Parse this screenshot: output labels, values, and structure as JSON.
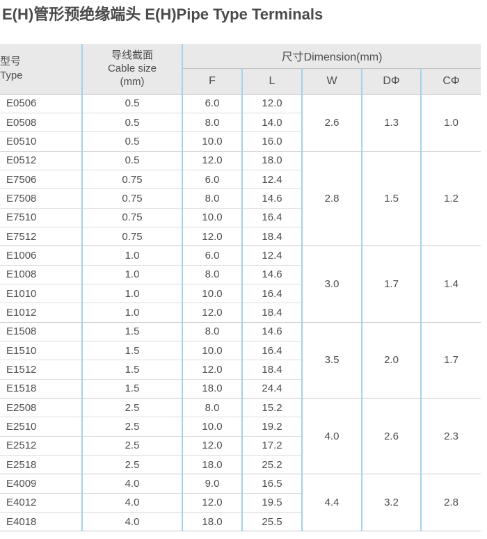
{
  "page": {
    "title": "E(H)管形预绝缘端头 E(H)Pipe Type Terminals"
  },
  "table": {
    "header": {
      "type_cn": "型号",
      "type_en": "Type",
      "cable_line1": "导线截面",
      "cable_line2": "Cable size",
      "cable_line3": "(mm)",
      "dimension": "尺寸Dimension(mm)",
      "col_f": "F",
      "col_l": "L",
      "col_w": "W",
      "col_d": "DΦ",
      "col_c": "CΦ"
    },
    "rows": [
      {
        "type": "E0506",
        "cable": "0.5",
        "f": "6.0",
        "l": "12.0"
      },
      {
        "type": "E0508",
        "cable": "0.5",
        "f": "8.0",
        "l": "14.0"
      },
      {
        "type": "E0510",
        "cable": "0.5",
        "f": "10.0",
        "l": "16.0"
      },
      {
        "type": "E0512",
        "cable": "0.5",
        "f": "12.0",
        "l": "18.0"
      },
      {
        "type": "E7506",
        "cable": "0.75",
        "f": "6.0",
        "l": "12.4"
      },
      {
        "type": "E7508",
        "cable": "0.75",
        "f": "8.0",
        "l": "14.6"
      },
      {
        "type": "E7510",
        "cable": "0.75",
        "f": "10.0",
        "l": "16.4"
      },
      {
        "type": "E7512",
        "cable": "0.75",
        "f": "12.0",
        "l": "18.4"
      },
      {
        "type": "E1006",
        "cable": "1.0",
        "f": "6.0",
        "l": "12.4"
      },
      {
        "type": "E1008",
        "cable": "1.0",
        "f": "8.0",
        "l": "14.6"
      },
      {
        "type": "E1010",
        "cable": "1.0",
        "f": "10.0",
        "l": "16.4"
      },
      {
        "type": "E1012",
        "cable": "1.0",
        "f": "12.0",
        "l": "18.4"
      },
      {
        "type": "E1508",
        "cable": "1.5",
        "f": "8.0",
        "l": "14.6"
      },
      {
        "type": "E1510",
        "cable": "1.5",
        "f": "10.0",
        "l": "16.4"
      },
      {
        "type": "E1512",
        "cable": "1.5",
        "f": "12.0",
        "l": "18.4"
      },
      {
        "type": "E1518",
        "cable": "1.5",
        "f": "18.0",
        "l": "24.4"
      },
      {
        "type": "E2508",
        "cable": "2.5",
        "f": "8.0",
        "l": "15.2"
      },
      {
        "type": "E2510",
        "cable": "2.5",
        "f": "10.0",
        "l": "19.2"
      },
      {
        "type": "E2512",
        "cable": "2.5",
        "f": "12.0",
        "l": "17.2"
      },
      {
        "type": "E2518",
        "cable": "2.5",
        "f": "18.0",
        "l": "25.2"
      },
      {
        "type": "E4009",
        "cable": "4.0",
        "f": "9.0",
        "l": "16.5"
      },
      {
        "type": "E4012",
        "cable": "4.0",
        "f": "12.0",
        "l": "19.5"
      },
      {
        "type": "E4018",
        "cable": "4.0",
        "f": "18.0",
        "l": "25.5"
      }
    ],
    "groups": [
      {
        "row_span": 3,
        "w": "2.6",
        "d": "1.3",
        "c": "1.0"
      },
      {
        "row_span": 5,
        "w": "2.8",
        "d": "1.5",
        "c": "1.2"
      },
      {
        "row_span": 4,
        "w": "3.0",
        "d": "1.7",
        "c": "1.4"
      },
      {
        "row_span": 4,
        "w": "3.5",
        "d": "2.0",
        "c": "1.7"
      },
      {
        "row_span": 4,
        "w": "4.0",
        "d": "2.6",
        "c": "2.3"
      },
      {
        "row_span": 3,
        "w": "4.4",
        "d": "3.2",
        "c": "2.8"
      }
    ],
    "colors": {
      "header_bg": "#e9e9e9",
      "grid_blue": "#a3d2eb",
      "row_line": "#dcdcdc",
      "group_line": "#c8c8c8",
      "header_line": "#c2c2c2",
      "text": "#4d4d4d",
      "title_text": "#4a4a4a"
    }
  }
}
